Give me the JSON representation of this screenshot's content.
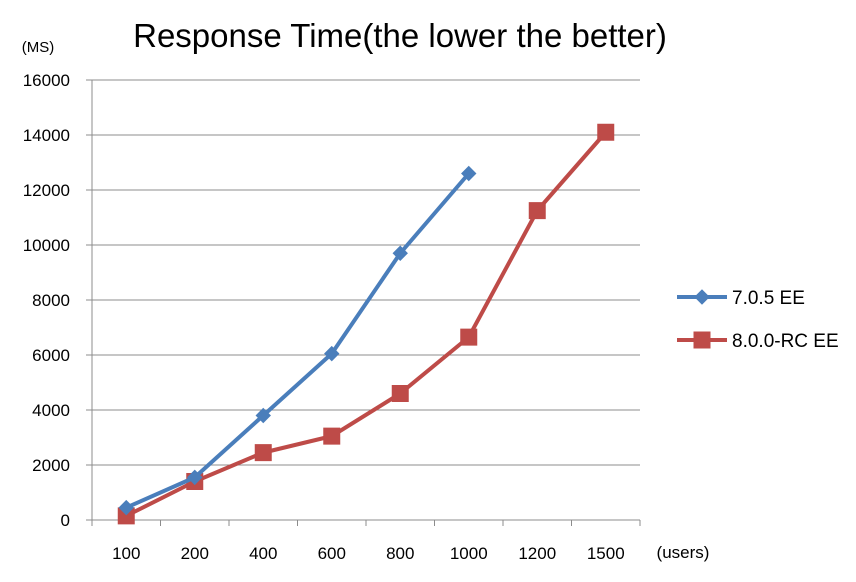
{
  "chart_data": {
    "type": "line",
    "title": "Response Time(the lower the better)",
    "y_unit_label": "(MS)",
    "x_unit_label": "(users)",
    "categories": [
      "100",
      "200",
      "400",
      "600",
      "800",
      "1000",
      "1200",
      "1500"
    ],
    "ylim": [
      0,
      16000
    ],
    "yticks": [
      0,
      2000,
      4000,
      6000,
      8000,
      10000,
      12000,
      14000,
      16000
    ],
    "grid": true,
    "legend_position": "right",
    "series": [
      {
        "name": "7.0.5 EE",
        "color": "#4a7ebb",
        "marker": "diamond",
        "values": [
          450,
          1550,
          3800,
          6050,
          9700,
          12600,
          null,
          null
        ]
      },
      {
        "name": "8.0.0-RC EE",
        "color": "#be4b48",
        "marker": "square",
        "values": [
          150,
          1400,
          2450,
          3050,
          4600,
          6650,
          11250,
          14100
        ]
      }
    ]
  }
}
